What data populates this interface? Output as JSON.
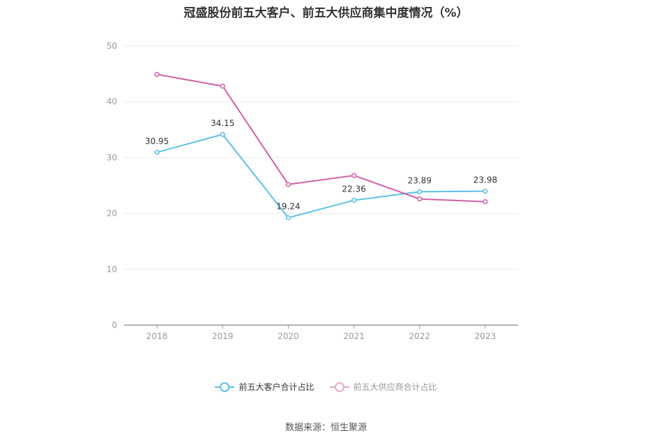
{
  "chart_data": {
    "type": "line",
    "title": "冠盛股份前五大客户、前五大供应商集中度情况（%）",
    "categories": [
      "2018",
      "2019",
      "2020",
      "2021",
      "2022",
      "2023"
    ],
    "series": [
      {
        "name": "前五大客户合计占比",
        "values": [
          30.95,
          34.15,
          19.24,
          22.36,
          23.89,
          23.98
        ],
        "color": "#5bc0eb",
        "show_labels": true
      },
      {
        "name": "前五大供应商合计占比",
        "values": [
          44.9,
          42.8,
          25.2,
          26.8,
          22.6,
          22.1
        ],
        "color": "#d161a8",
        "show_labels": false
      }
    ],
    "ylim": [
      0,
      50
    ],
    "yticks": [
      0,
      10,
      20,
      30,
      40,
      50
    ],
    "grid": true,
    "legend_position": "bottom"
  },
  "source": "数据来源：恒生聚源"
}
